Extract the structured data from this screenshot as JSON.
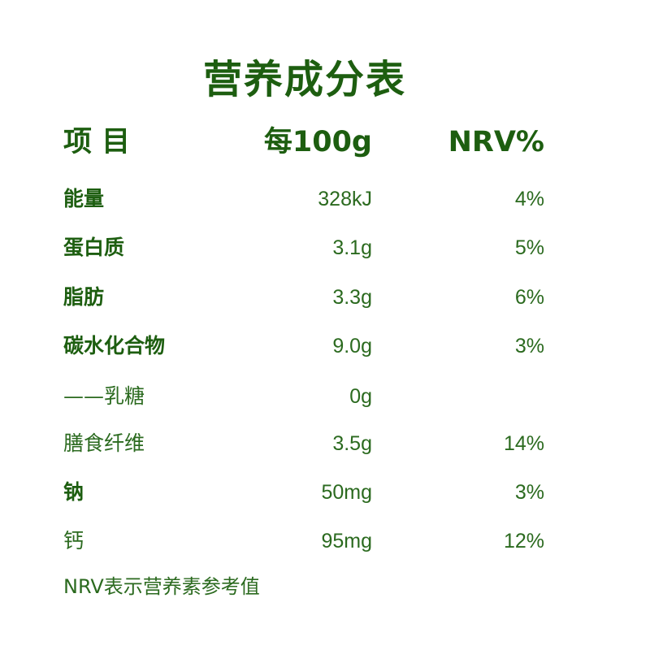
{
  "title": "营养成分表",
  "header": {
    "item": "项 目",
    "per100g": "每100g",
    "nrv": "NRV%"
  },
  "rows": [
    {
      "label": "能量",
      "value": "328kJ",
      "nrv": "4%",
      "bold": true
    },
    {
      "label": "蛋白质",
      "value": "3.1g",
      "nrv": "5%",
      "bold": true
    },
    {
      "label": "脂肪",
      "value": "3.3g",
      "nrv": "6%",
      "bold": true
    },
    {
      "label": "碳水化合物",
      "value": "9.0g",
      "nrv": "3%",
      "bold": true
    },
    {
      "label": "——乳糖",
      "value": "0g",
      "nrv": "",
      "bold": false
    },
    {
      "label": "膳食纤维",
      "value": "3.5g",
      "nrv": "14%",
      "bold": false
    },
    {
      "label": "钠",
      "value": "50mg",
      "nrv": "3%",
      "bold": true
    },
    {
      "label": "钙",
      "value": "95mg",
      "nrv": "12%",
      "bold": false
    }
  ],
  "footnote": "NRV表示营养素参考值",
  "colors": {
    "title": "#1d5e10",
    "text": "#2b6a1f"
  }
}
